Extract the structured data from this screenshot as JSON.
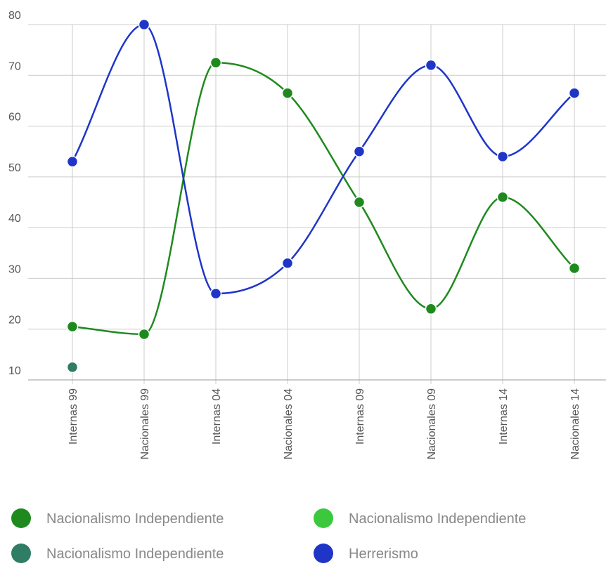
{
  "chart_data": {
    "type": "line",
    "categories": [
      "Internas 99",
      "Nacionales 99",
      "Internas 04",
      "Nacionales 04",
      "Internas 09",
      "Nacionales 09",
      "Internas 14",
      "Nacionales 14"
    ],
    "series": [
      {
        "name": "Nacionalismo Independiente",
        "color": "#1e8a1e",
        "values": [
          20.5,
          19,
          72.5,
          66.5,
          45,
          24,
          46,
          32
        ]
      },
      {
        "name": "Nacionalismo Independiente",
        "color": "#3cc83c",
        "values": [
          null,
          null,
          null,
          null,
          null,
          null,
          null,
          null
        ]
      },
      {
        "name": "Nacionalismo Independiente",
        "color": "#2e7d64",
        "values": [
          12.5,
          null,
          null,
          null,
          null,
          null,
          null,
          null
        ]
      },
      {
        "name": "Herrerismo",
        "color": "#1f35c8",
        "values": [
          53,
          80,
          27,
          33,
          55,
          72,
          54,
          66.5
        ]
      }
    ],
    "ylim": [
      10,
      80
    ],
    "yticks": [
      10,
      20,
      30,
      40,
      50,
      60,
      70,
      80
    ],
    "grid": true,
    "legend": "bottom"
  }
}
